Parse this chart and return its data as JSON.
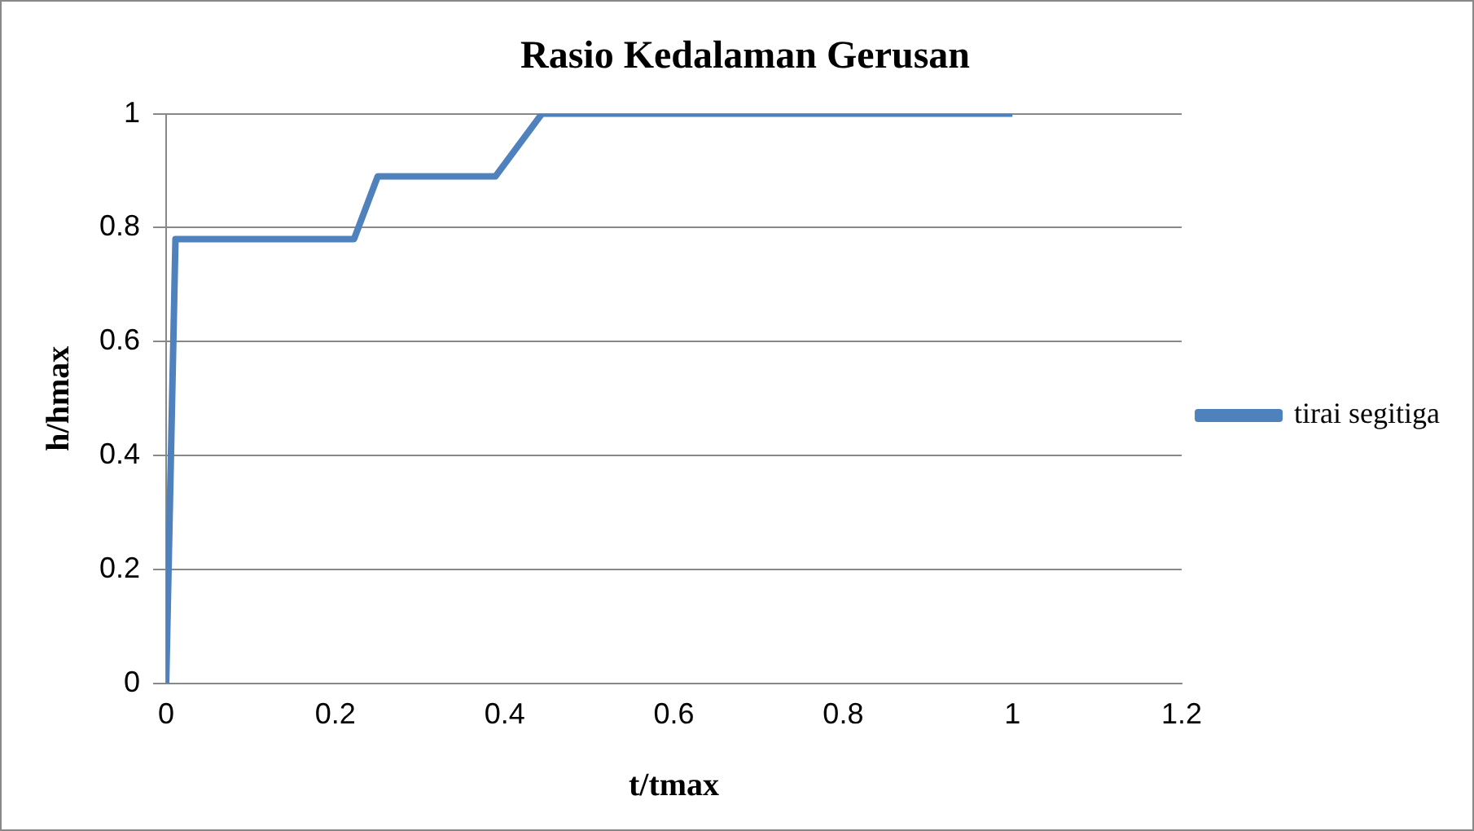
{
  "chart_data": {
    "type": "line",
    "title": "Rasio Kedalaman Gerusan",
    "xlabel": "t/tmax",
    "ylabel": "h/hmax",
    "series": [
      {
        "name": "tirai segitiga",
        "color": "#4f81bd",
        "x": [
          0,
          0.011,
          0.222,
          0.25,
          0.389,
          0.444,
          1
        ],
        "values": [
          0,
          0.78,
          0.78,
          0.89,
          0.89,
          1,
          1
        ]
      }
    ],
    "xlim": [
      0,
      1.2
    ],
    "xticks": [
      0,
      0.2,
      0.4,
      0.6,
      0.8,
      1,
      1.2
    ],
    "ylim": [
      0,
      1
    ],
    "yticks": [
      0,
      0.2,
      0.4,
      0.6,
      0.8,
      1
    ],
    "grid": "y",
    "legend": "right",
    "marker": "none",
    "line_style": "solid"
  }
}
